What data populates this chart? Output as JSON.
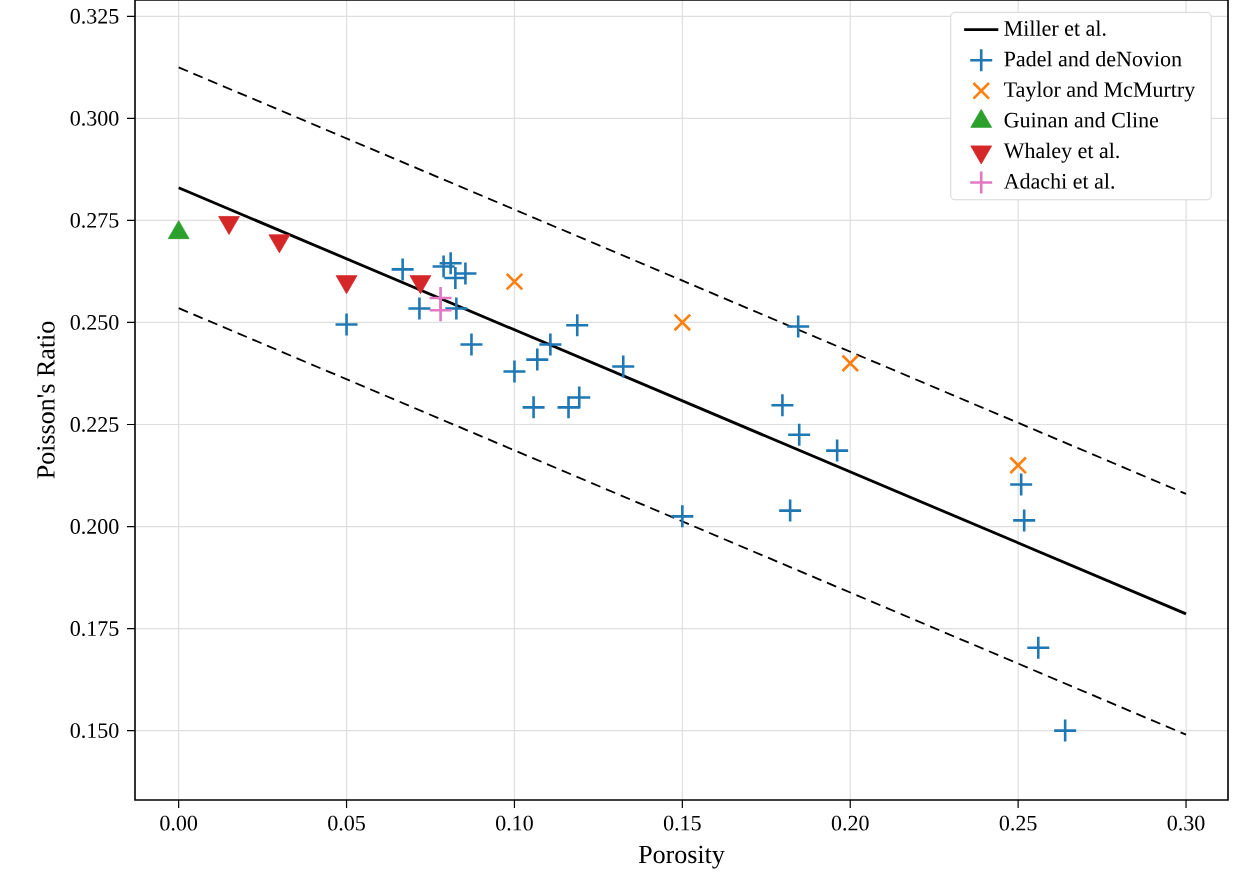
{
  "chart_data": {
    "type": "scatter",
    "xlabel": "Porosity",
    "ylabel": "Poisson's Ratio",
    "xlim": [
      -0.013,
      0.3125
    ],
    "ylim": [
      0.133,
      0.329
    ],
    "xticks": [
      {
        "value": 0,
        "label": "0.00"
      },
      0.05,
      {
        "value": 0.1,
        "label": "0.10"
      },
      0.15,
      {
        "value": 0.2,
        "label": "0.20"
      },
      0.25,
      {
        "value": 0.3,
        "label": "0.30"
      }
    ],
    "yticks": [
      {
        "value": 0.15,
        "label": "0.150"
      },
      0.175,
      {
        "value": 0.2,
        "label": "0.200"
      },
      0.225,
      {
        "value": 0.25,
        "label": "0.250"
      },
      0.275,
      {
        "value": 0.3,
        "label": "0.300"
      },
      0.325
    ],
    "grid": true,
    "legend": "top right",
    "series": [
      {
        "name": "Miller et al.",
        "type": "line",
        "color": "#000000",
        "line_style": "solid",
        "marker": "none",
        "x": [
          0,
          0.3
        ],
        "values": [
          0.283,
          0.1786
        ]
      },
      {
        "type": "line",
        "color": "#000000",
        "line_style": "dashed",
        "marker": "none",
        "x": [
          0,
          0.3
        ],
        "values": [
          0.3125,
          0.208
        ]
      },
      {
        "type": "line",
        "color": "#000000",
        "line_style": "dashed",
        "marker": "none",
        "x": [
          0,
          0.3
        ],
        "values": [
          0.2535,
          0.149
        ]
      },
      {
        "name": "Padel and deNovion",
        "color": "#1f77b4",
        "x": [
          0.0667,
          0.0789,
          0.081,
          0.0824,
          0.0854,
          0.0717,
          0.0827,
          0.05,
          0.0872,
          0.1,
          0.1068,
          0.1107,
          0.1187,
          0.1324,
          0.1057,
          0.1161,
          0.1193,
          0.1845,
          0.1798,
          0.1848,
          0.1961,
          0.1821,
          0.15,
          0.2509,
          0.2518,
          0.256,
          0.264
        ],
        "values": [
          0.263,
          0.2637,
          0.2645,
          0.2609,
          0.262,
          0.2534,
          0.2534,
          0.2495,
          0.2446,
          0.238,
          0.2409,
          0.2446,
          0.2493,
          0.2392,
          0.2292,
          0.2292,
          0.2316,
          0.249,
          0.2297,
          0.2225,
          0.2186,
          0.2039,
          0.2025,
          0.2103,
          0.2015,
          0.1703,
          0.15
        ]
      },
      {
        "name": "Taylor and McMurtry",
        "color": "#ff7f0e",
        "marker": "cross",
        "x": [
          0.1,
          0.15,
          0.2,
          0.25
        ],
        "values": [
          0.26,
          0.25,
          0.24,
          0.215
        ]
      },
      {
        "name": "Guinan and Cline",
        "color": "#2ca02c",
        "marker": "triangle",
        "x": [
          0
        ],
        "values": [
          0.272
        ]
      },
      {
        "name": "Whaley et al.",
        "color": "#d62728",
        "marker": "triangle_down",
        "x": [
          0.015,
          0.03,
          0.05,
          0.072
        ],
        "values": [
          0.2745,
          0.27,
          0.26,
          0.26
        ]
      },
      {
        "name": "Adachi et al.",
        "color": "#e377c2",
        "x": [
          0.078,
          0.078
        ],
        "values": [
          0.256,
          0.253
        ]
      }
    ]
  }
}
